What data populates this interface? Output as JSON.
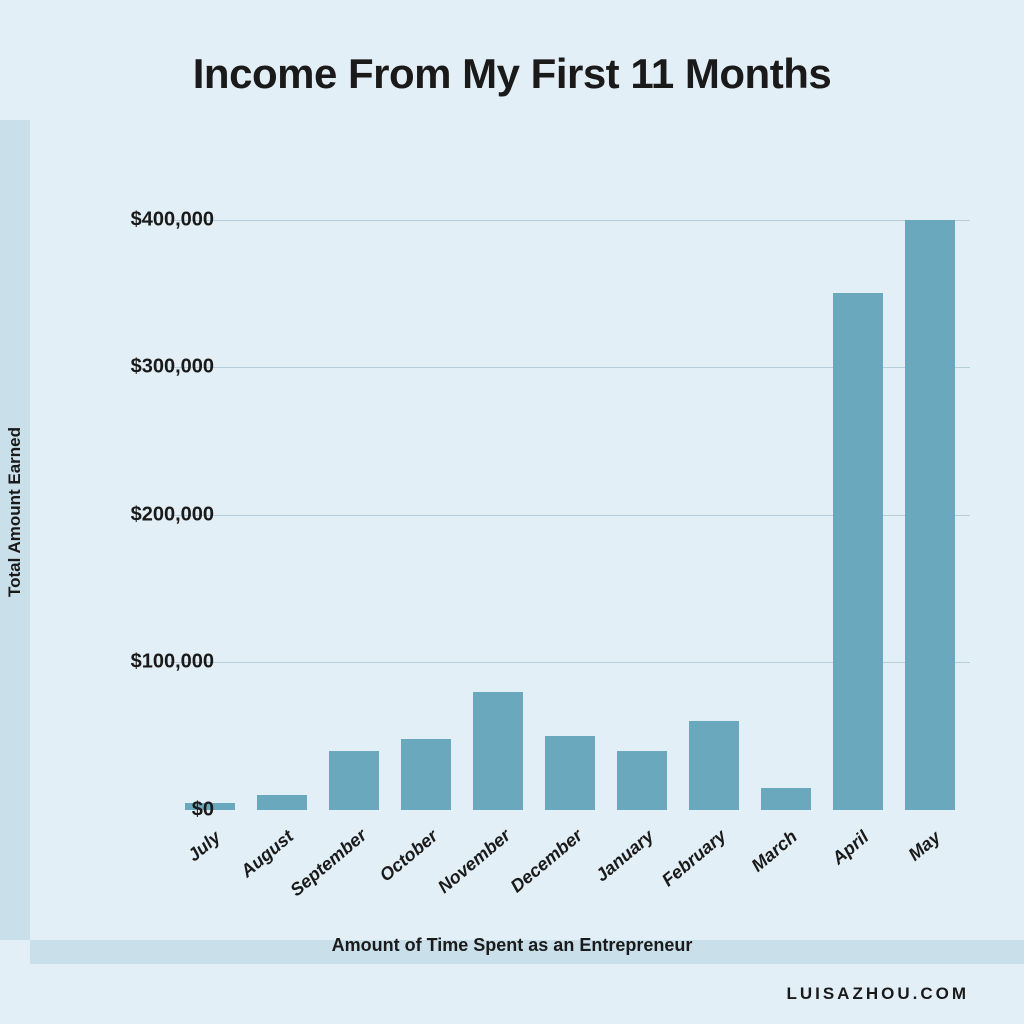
{
  "chart": {
    "type": "bar",
    "title": "Income From My First 11 Months",
    "title_fontsize": 42,
    "title_color": "#1a1a1a",
    "background_color": "#e3eff6",
    "band_color": "#c9dfea",
    "grid_color": "#b8cdd9",
    "text_color": "#1a1a1a",
    "bar_color": "#6aa9bd",
    "bar_width": 0.7,
    "ylabel": "Total Amount Earned",
    "xlabel": "Amount of Time Spent as an Entrepreneur",
    "ylim": [
      0,
      420000
    ],
    "yticks": [
      {
        "value": 0,
        "label": "$0"
      },
      {
        "value": 100000,
        "label": "$100,000"
      },
      {
        "value": 200000,
        "label": "$200,000"
      },
      {
        "value": 300000,
        "label": "$300,000"
      },
      {
        "value": 400000,
        "label": "$400,000"
      }
    ],
    "categories": [
      "July",
      "August",
      "September",
      "October",
      "November",
      "December",
      "January",
      "February",
      "March",
      "April",
      "May"
    ],
    "values": [
      5000,
      10000,
      40000,
      48000,
      80000,
      50000,
      40000,
      60000,
      15000,
      350000,
      400000
    ],
    "xlabel_rotation_deg": -40,
    "tick_fontsize": 20,
    "axis_title_fontsize": 18
  },
  "footer": {
    "text": "LUISAZHOU.COM",
    "color": "#1a1a1a"
  }
}
